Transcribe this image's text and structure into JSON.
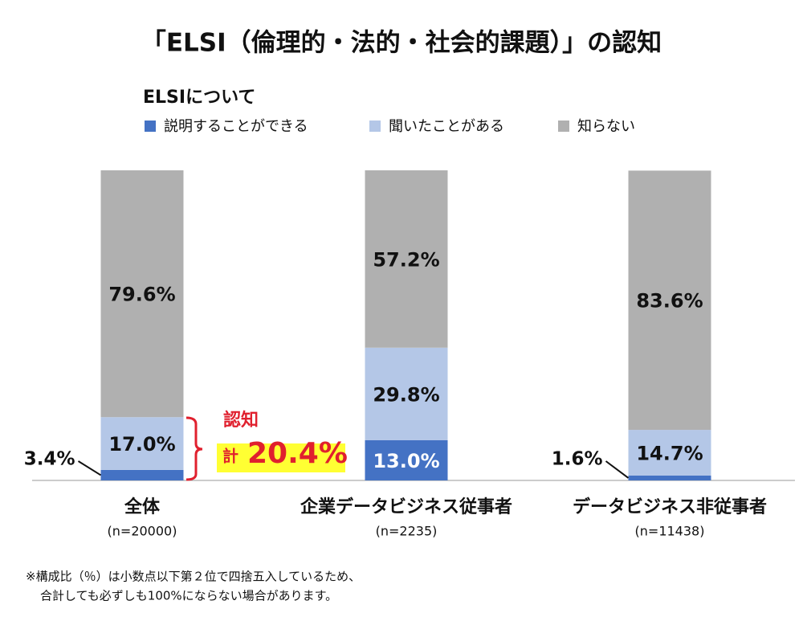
{
  "chart_data": {
    "type": "stacked_bar",
    "title": "「ELSI（倫理的・法的・社会的課題）」の認知",
    "subtitle": "ELSIについて",
    "categories": [
      "全体",
      "企業データビジネス従事者",
      "データビジネス非従事者"
    ],
    "category_notes": [
      "(n=20000)",
      "(n=2235)",
      "(n=11438)"
    ],
    "series": [
      {
        "name": "説明することができる",
        "color": "#4472c4",
        "values": [
          3.4,
          13.0,
          1.6
        ],
        "value_labels": [
          "3.4%",
          "13.0%",
          "1.6%"
        ]
      },
      {
        "name": "聞いたことがある",
        "color": "#b4c7e7",
        "values": [
          17.0,
          29.8,
          14.7
        ],
        "value_labels": [
          "17.0%",
          "29.8%",
          "14.7%"
        ]
      },
      {
        "name": "知らない",
        "color": "#b0b0b0",
        "values": [
          79.6,
          57.2,
          83.6
        ],
        "value_labels": [
          "79.6%",
          "57.2%",
          "83.6%"
        ]
      }
    ],
    "ylim": [
      0,
      100
    ],
    "legend": "top",
    "annotation": {
      "heading": "認知",
      "prefix": "計",
      "total": "20.4%"
    },
    "footnote": [
      "※構成比（％）は小数点以下第２位で四捨五入しているため、",
      "合計しても必ずしも100%にならない場合があります。"
    ]
  }
}
